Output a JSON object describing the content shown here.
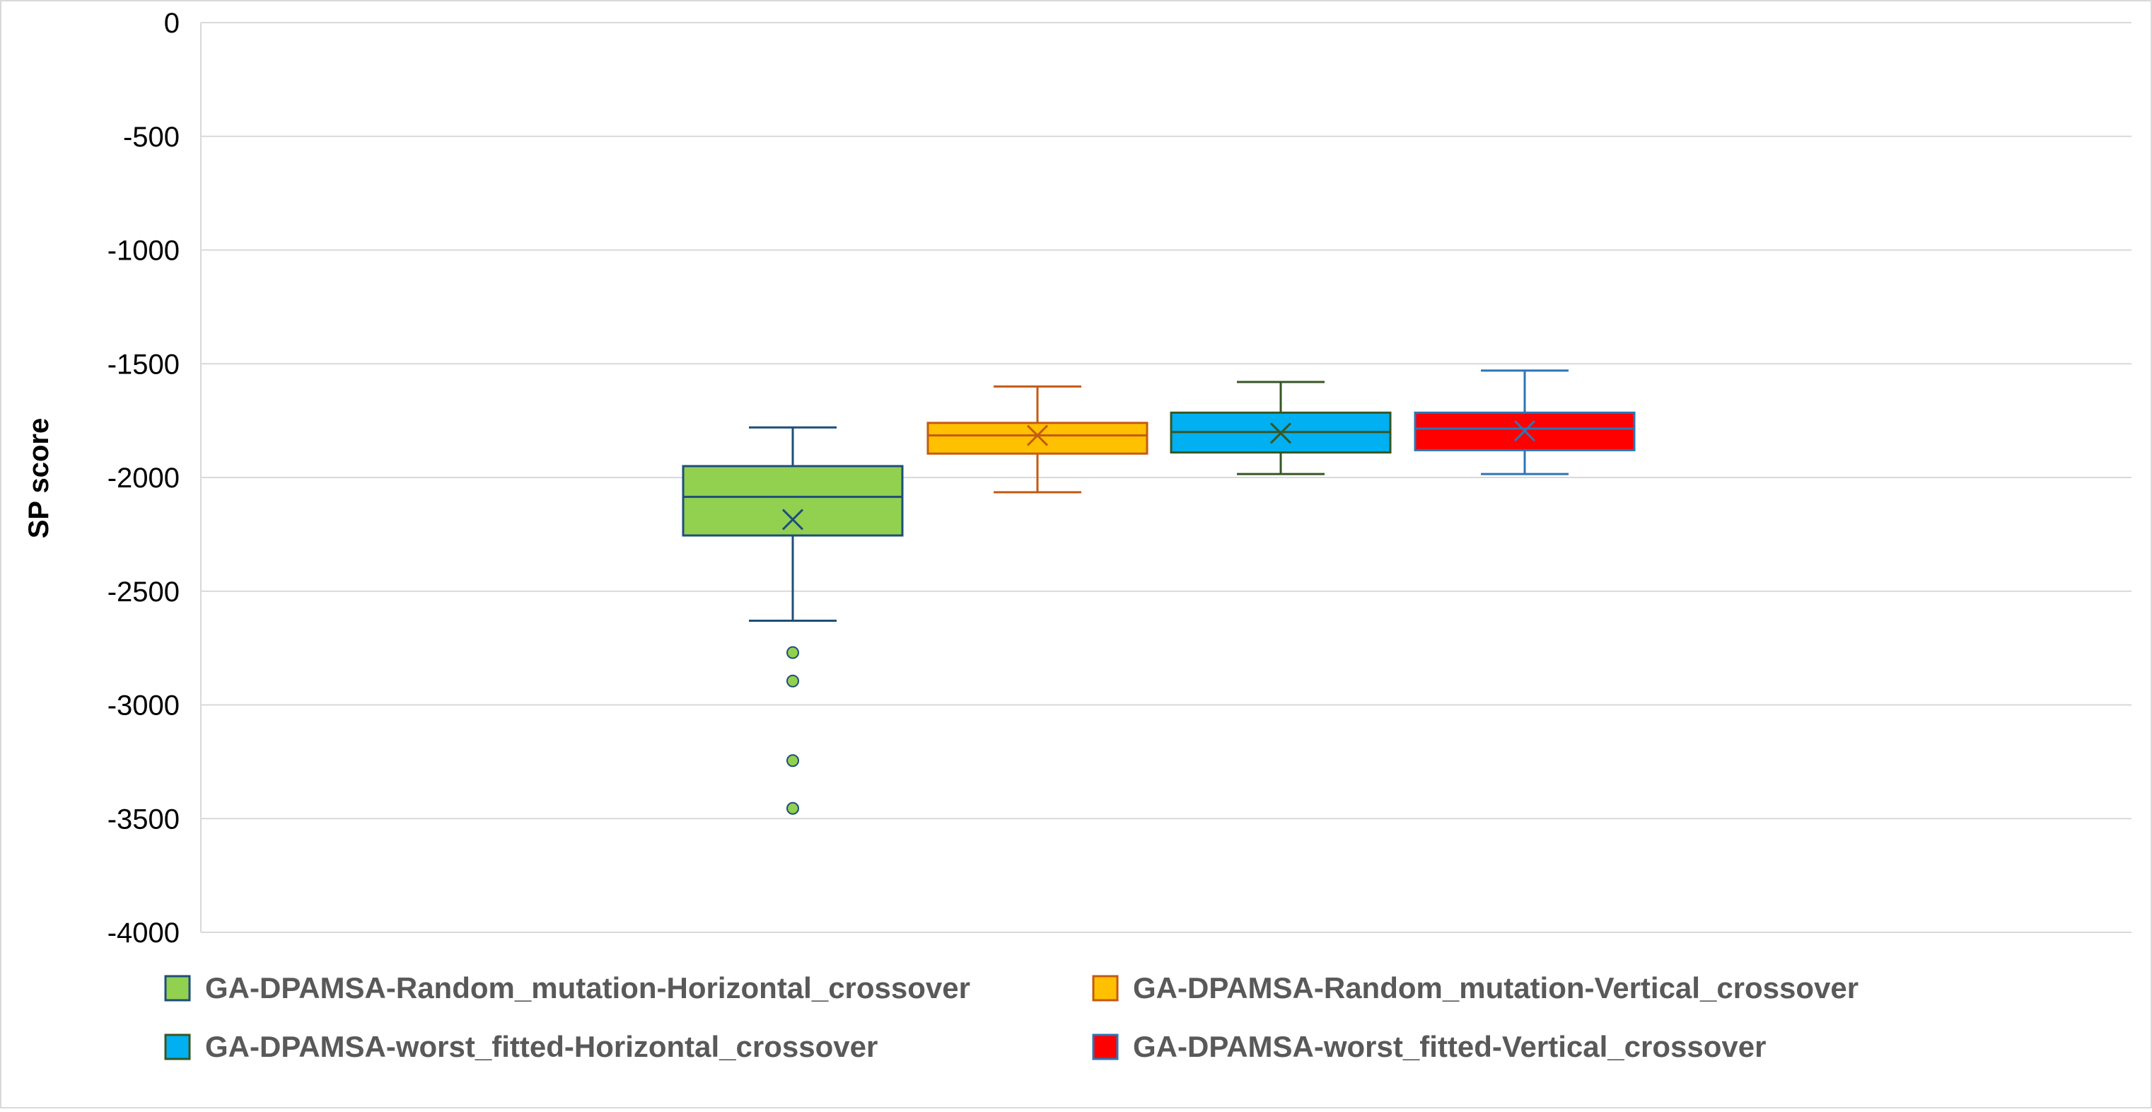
{
  "chart_data": {
    "type": "box",
    "ylabel": "SP score",
    "xlabel": "",
    "ylim": [
      -4000,
      0
    ],
    "yticks": [
      0,
      -500,
      -1000,
      -1500,
      -2000,
      -2500,
      -3000,
      -3500,
      -4000
    ],
    "grid": true,
    "legend_position": "bottom",
    "series": [
      {
        "name": "GA-DPAMSA-Random_mutation-Horizontal_crossover",
        "fill": "#92D050",
        "stroke": "#1F4E79",
        "whisker_low": -2630,
        "q1": -2255,
        "median": -2085,
        "q3": -1950,
        "whisker_high": -1780,
        "mean": -2185,
        "outliers": [
          -2770,
          -2895,
          -3245,
          -3455
        ]
      },
      {
        "name": "GA-DPAMSA-Random_mutation-Vertical_crossover",
        "fill": "#FFC000",
        "stroke": "#C55A11",
        "whisker_low": -2065,
        "q1": -1895,
        "median": -1815,
        "q3": -1760,
        "whisker_high": -1600,
        "mean": -1815,
        "outliers": []
      },
      {
        "name": "GA-DPAMSA-worst_fitted-Horizontal_crossover",
        "fill": "#00B0F0",
        "stroke": "#375623",
        "whisker_low": -1985,
        "q1": -1890,
        "median": -1800,
        "q3": -1715,
        "whisker_high": -1580,
        "mean": -1805,
        "outliers": []
      },
      {
        "name": "GA-DPAMSA-worst_fitted-Vertical_crossover",
        "fill": "#FF0000",
        "stroke": "#2E75B6",
        "whisker_low": -1985,
        "q1": -1880,
        "median": -1785,
        "q3": -1715,
        "whisker_high": -1530,
        "mean": -1795,
        "outliers": []
      }
    ]
  }
}
